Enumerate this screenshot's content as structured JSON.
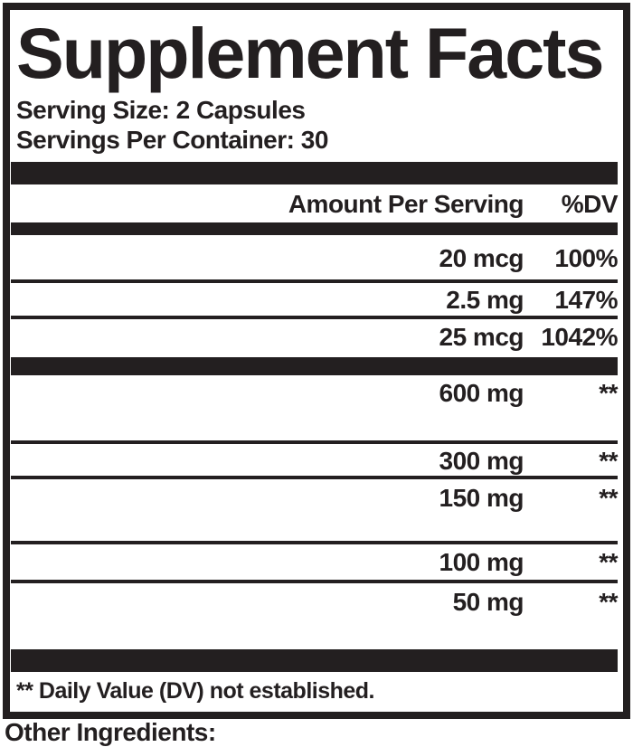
{
  "colors": {
    "ink": "#231f20",
    "background": "#ffffff"
  },
  "label": {
    "title": "Supplement Facts",
    "serving_size": "Serving Size: 2 Capsules",
    "servings_per_container": "Servings Per Container: 30",
    "columns": {
      "amount": "Amount Per Serving",
      "dv": "%DV"
    },
    "rows": [
      {
        "name": "",
        "amount": "20 mcg",
        "dv": "100%"
      },
      {
        "name": "",
        "amount": "2.5 mg",
        "dv": "147%"
      },
      {
        "name": "",
        "amount": "25 mcg",
        "dv": "1042%"
      },
      {
        "name": "",
        "amount": "600 mg",
        "dv": "**"
      },
      {
        "name": "",
        "amount": "300 mg",
        "dv": "**"
      },
      {
        "name": "",
        "amount": "150 mg",
        "dv": "**"
      },
      {
        "name": "",
        "amount": "100 mg",
        "dv": "**"
      },
      {
        "name": "",
        "amount": "50 mg",
        "dv": "**"
      }
    ],
    "footnote": "** Daily Value (DV) not established.",
    "other_ingredients_label": "Other Ingredients:"
  }
}
